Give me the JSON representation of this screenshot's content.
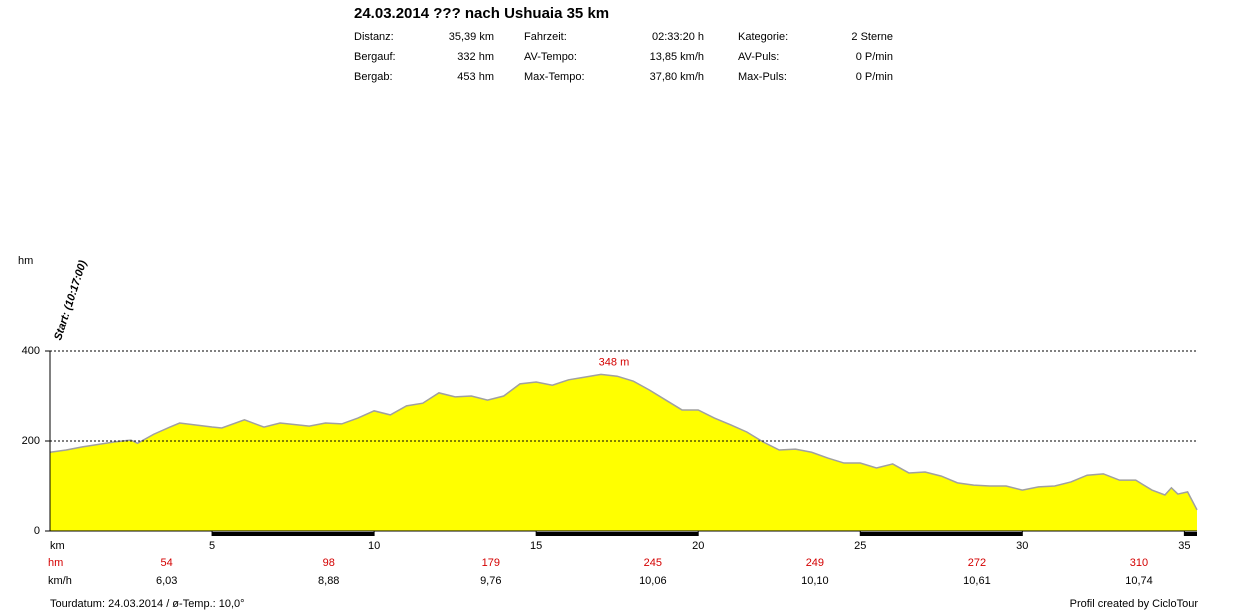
{
  "chart_data": {
    "type": "area",
    "title": "24.03.2014 ??? nach Ushuaia 35 km",
    "stats": [
      [
        [
          "Distanz:",
          "35,39 km"
        ],
        [
          "Fahrzeit:",
          "02:33:20 h"
        ],
        [
          "Kategorie:",
          "2 Sterne"
        ]
      ],
      [
        [
          "Bergauf:",
          "332 hm"
        ],
        [
          "AV-Tempo:",
          "13,85 km/h"
        ],
        [
          "AV-Puls:",
          "0 P/min"
        ]
      ],
      [
        [
          "Bergab:",
          "453 hm"
        ],
        [
          "Max-Tempo:",
          "37,80 km/h"
        ],
        [
          "Max-Puls:",
          "0 P/min"
        ]
      ]
    ],
    "y_label": "hm",
    "x_label": "km",
    "start_label": "Start: (10:17:00)",
    "annotation": "348 m",
    "color": "#ffff00",
    "line_color": "#a0a0a0",
    "grid": true,
    "xlim": [
      0,
      35.39
    ],
    "ylim": [
      0,
      400
    ],
    "yticks": [
      0,
      200,
      400
    ],
    "xticks": [
      5,
      10,
      15,
      20,
      25,
      30,
      35
    ],
    "x": [
      0,
      0.5,
      1,
      2,
      2.5,
      2.7,
      3.2,
      3.7,
      4,
      5,
      5.3,
      6,
      6.6,
      7.1,
      8,
      8.5,
      9,
      9.5,
      10,
      10.5,
      11,
      11.5,
      12,
      12.5,
      13,
      13.5,
      14,
      14.5,
      15,
      15.5,
      16,
      16.5,
      17,
      17.5,
      18,
      18.5,
      19,
      19.5,
      20,
      20.5,
      21,
      21.5,
      22,
      22.5,
      23,
      23.5,
      24,
      24.5,
      25,
      25.5,
      26,
      26.5,
      27,
      27.5,
      28,
      28.5,
      29,
      29.5,
      30,
      30.5,
      31,
      31.5,
      32,
      32.5,
      33,
      33.5,
      34,
      34.4,
      34.6,
      34.8,
      35.1,
      35.39
    ],
    "values": [
      175,
      180,
      187,
      198,
      202,
      195,
      215,
      231,
      240,
      231,
      229,
      247,
      231,
      240,
      233,
      240,
      238,
      251,
      267,
      258,
      278,
      284,
      307,
      298,
      300,
      291,
      300,
      327,
      331,
      324,
      336,
      342,
      348,
      344,
      333,
      313,
      291,
      269,
      269,
      251,
      236,
      220,
      198,
      180,
      182,
      175,
      162,
      151,
      151,
      140,
      149,
      129,
      131,
      122,
      107,
      102,
      100,
      100,
      91,
      98,
      100,
      109,
      124,
      127,
      113,
      113,
      91,
      80,
      96,
      82,
      87,
      47
    ],
    "segment_rows": [
      {
        "label": "hm",
        "values": [
          "54",
          "98",
          "179",
          "245",
          "249",
          "272",
          "310"
        ]
      },
      {
        "label": "km/h",
        "values": [
          "6,03",
          "8,88",
          "9,76",
          "10,06",
          "10,10",
          "10,61",
          "10,74"
        ]
      }
    ],
    "footer_left": "Tourdatum: 24.03.2014  /  ø-Temp.: 10,0°",
    "footer_right": "Profil created by CicloTour"
  }
}
